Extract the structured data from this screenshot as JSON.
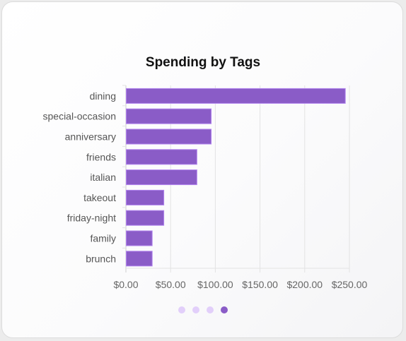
{
  "card": {
    "title": "Spending by Tags"
  },
  "chart_data": {
    "type": "bar",
    "orientation": "horizontal",
    "title": "Spending by Tags",
    "categories": [
      "dining",
      "special-occasion",
      "anniversary",
      "friends",
      "italian",
      "takeout",
      "friday-night",
      "family",
      "brunch"
    ],
    "values": [
      245,
      95,
      95,
      79,
      79,
      42,
      42,
      29,
      29
    ],
    "x_ticks": [
      "$0.00",
      "$50.00",
      "$100.00",
      "$150.00",
      "$200.00",
      "$250.00"
    ],
    "xlim": [
      0,
      250
    ],
    "grid": true,
    "legend": "none",
    "bar_color": "#8a5cc7",
    "bar_border_color": "#b184ee"
  },
  "pagination": {
    "pages": 4,
    "active_index": 3,
    "dot_color": "#e2cffa",
    "active_dot_color": "#8a5cc7"
  }
}
